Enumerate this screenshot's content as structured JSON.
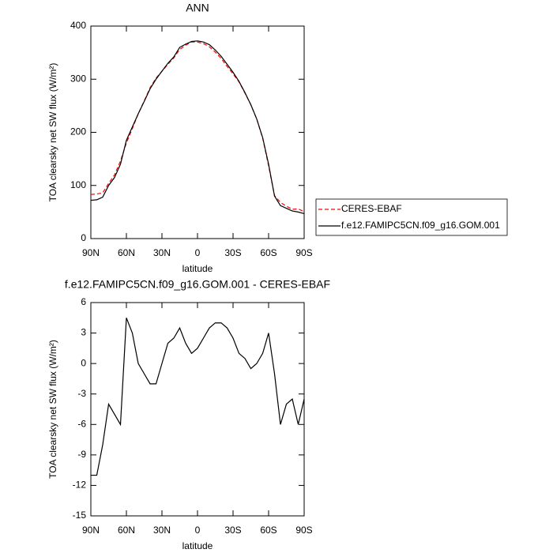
{
  "chart_data": [
    {
      "type": "line",
      "title": "ANN",
      "ylabel": "TOA clearsky net SW flux (W/m²)",
      "xlabel": "latitude",
      "x": [
        90,
        85,
        80,
        75,
        70,
        65,
        60,
        55,
        50,
        45,
        40,
        35,
        30,
        25,
        20,
        15,
        10,
        5,
        0,
        -5,
        -10,
        -15,
        -20,
        -25,
        -30,
        -35,
        -40,
        -45,
        -50,
        -55,
        -60,
        -65,
        -70,
        -75,
        -80,
        -85,
        -90
      ],
      "xlim": [
        90,
        -90
      ],
      "xticks": [
        {
          "value": 90,
          "label": "90N"
        },
        {
          "value": 60,
          "label": "60N"
        },
        {
          "value": 30,
          "label": "30N"
        },
        0,
        {
          "value": -30,
          "label": "30S"
        },
        {
          "value": -60,
          "label": "60S"
        },
        {
          "value": -90,
          "label": "90S"
        }
      ],
      "ylim": [
        0,
        400
      ],
      "yticks": [
        0,
        100,
        200,
        300,
        400
      ],
      "legend": "right",
      "series": [
        {
          "name": "CERES-EBAF",
          "color": "#ff0000",
          "style": "dashed",
          "values": [
            83,
            84,
            86,
            104,
            120,
            146,
            180,
            207,
            235,
            259,
            284,
            302,
            315,
            328,
            340,
            356,
            364,
            370,
            370,
            367,
            361,
            351,
            339,
            324,
            310,
            295,
            274,
            252,
            225,
            189,
            137,
            81,
            68,
            61,
            55,
            56,
            50.5
          ]
        },
        {
          "name": "f.e12.FAMIPC5CN.f09_g16.GOM.001",
          "color": "#000000",
          "style": "solid",
          "values": [
            72,
            73,
            78,
            100,
            115,
            140,
            185,
            210,
            235,
            258,
            282,
            300,
            315,
            330,
            342,
            360,
            366,
            371,
            372,
            370,
            365,
            355,
            343,
            328,
            313,
            296,
            275,
            252,
            225,
            190,
            140,
            80,
            62,
            57,
            52,
            50,
            47
          ]
        }
      ]
    },
    {
      "type": "line",
      "title": "f.e12.FAMIPC5CN.f09_g16.GOM.001 - CERES-EBAF",
      "ylabel": "TOA clearsky net SW flux (W/m²)",
      "xlabel": "latitude",
      "x": [
        90,
        85,
        80,
        75,
        70,
        65,
        60,
        55,
        50,
        45,
        40,
        35,
        30,
        25,
        20,
        15,
        10,
        5,
        0,
        -5,
        -10,
        -15,
        -20,
        -25,
        -30,
        -35,
        -40,
        -45,
        -50,
        -55,
        -60,
        -65,
        -70,
        -75,
        -80,
        -85,
        -90
      ],
      "xlim": [
        90,
        -90
      ],
      "xticks": [
        {
          "value": 90,
          "label": "90N"
        },
        {
          "value": 60,
          "label": "60N"
        },
        {
          "value": 30,
          "label": "30N"
        },
        0,
        {
          "value": -30,
          "label": "30S"
        },
        {
          "value": -60,
          "label": "60S"
        },
        {
          "value": -90,
          "label": "90S"
        }
      ],
      "ylim": [
        -15,
        6
      ],
      "yticks": [
        -15,
        -12,
        -9,
        -6,
        -3,
        0,
        3,
        6
      ],
      "series": [
        {
          "color": "#000000",
          "style": "solid",
          "values": [
            -11,
            -11,
            -8,
            -4,
            -5,
            -6,
            4.5,
            3,
            0,
            -1,
            -2,
            -2,
            0,
            2,
            2.5,
            3.5,
            2,
            1,
            1.5,
            2.5,
            3.5,
            4,
            4,
            3.5,
            2.5,
            1,
            0.5,
            -0.5,
            0,
            1,
            3,
            -1,
            -6,
            -4,
            -3.5,
            -6,
            -3.5
          ]
        }
      ]
    }
  ]
}
